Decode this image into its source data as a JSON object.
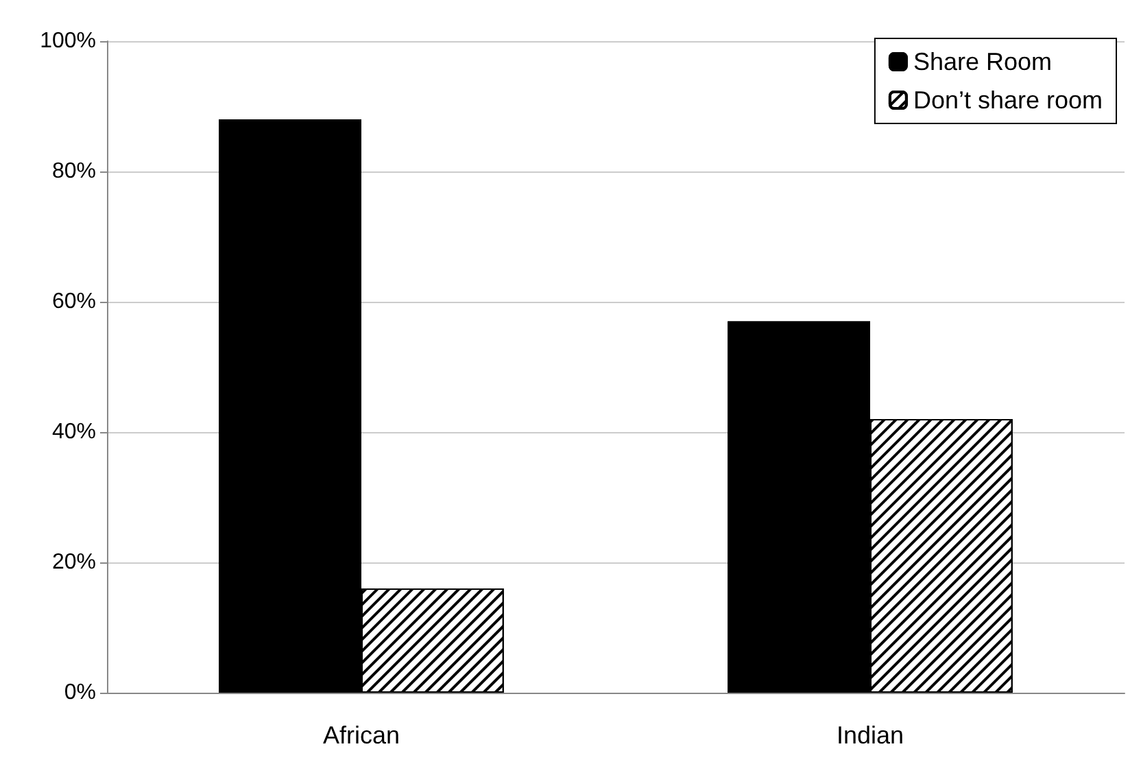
{
  "chart_data": {
    "type": "bar",
    "categories": [
      "African",
      "Indian"
    ],
    "series": [
      {
        "name": "Share Room",
        "color": "#000000",
        "values": [
          88,
          57
        ]
      },
      {
        "name": "Don’t share room",
        "color": "#ffffff",
        "values": [
          16,
          42
        ]
      }
    ],
    "ylim": [
      0,
      100
    ],
    "yticks": [
      {
        "value": 0,
        "label": "0%"
      },
      {
        "value": 20,
        "label": "20%"
      },
      {
        "value": 40,
        "label": "40%"
      },
      {
        "value": 60,
        "label": "60%"
      },
      {
        "value": 80,
        "label": "80%"
      },
      {
        "value": 100,
        "label": "100%"
      }
    ],
    "grid": "y",
    "legend": "top right"
  }
}
